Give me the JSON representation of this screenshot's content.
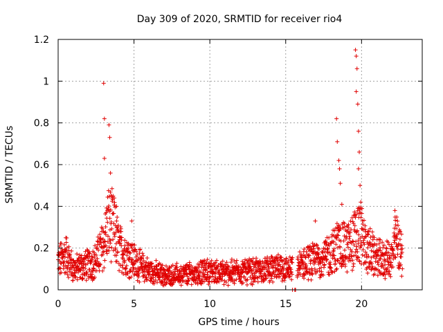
{
  "chart_data": {
    "type": "scatter",
    "title": "Day 309 of 2020, SRMTID for receiver rio4",
    "xlabel": "GPS time / hours",
    "ylabel": "SRMTID / TECUs",
    "xlim": [
      0,
      24
    ],
    "ylim": [
      0,
      1.2
    ],
    "xticks": [
      0,
      5,
      10,
      15,
      20
    ],
    "yticks": [
      0,
      0.2,
      0.4,
      0.6,
      0.8,
      1,
      1.2
    ],
    "xtick_labels": [
      "0",
      "5",
      "10",
      "15",
      "20"
    ],
    "ytick_labels": [
      "0",
      "0.2",
      "0.4",
      "0.6",
      "0.8",
      "1",
      "1.2"
    ],
    "grid": true,
    "marker": "plus",
    "color": "#e00000",
    "series": [
      {
        "name": "SRMTID rio4",
        "profile": [
          [
            0.0,
            0.13
          ],
          [
            0.5,
            0.17
          ],
          [
            1.0,
            0.1
          ],
          [
            1.5,
            0.11
          ],
          [
            2.0,
            0.12
          ],
          [
            2.5,
            0.14
          ],
          [
            3.0,
            0.22
          ],
          [
            3.3,
            0.32
          ],
          [
            3.6,
            0.3
          ],
          [
            4.0,
            0.2
          ],
          [
            4.5,
            0.17
          ],
          [
            5.0,
            0.14
          ],
          [
            5.5,
            0.11
          ],
          [
            6.0,
            0.09
          ],
          [
            7.0,
            0.07
          ],
          [
            8.0,
            0.07
          ],
          [
            9.0,
            0.08
          ],
          [
            10.0,
            0.09
          ],
          [
            11.0,
            0.08
          ],
          [
            12.0,
            0.09
          ],
          [
            13.0,
            0.09
          ],
          [
            14.0,
            0.1
          ],
          [
            15.0,
            0.1
          ],
          [
            15.4,
            0.09
          ],
          [
            16.0,
            0.12
          ],
          [
            17.0,
            0.14
          ],
          [
            18.0,
            0.17
          ],
          [
            18.5,
            0.22
          ],
          [
            19.0,
            0.2
          ],
          [
            19.5,
            0.24
          ],
          [
            19.9,
            0.27
          ],
          [
            20.3,
            0.2
          ],
          [
            21.0,
            0.15
          ],
          [
            21.5,
            0.14
          ],
          [
            22.0,
            0.15
          ],
          [
            22.3,
            0.25
          ],
          [
            22.7,
            0.15
          ]
        ],
        "peaks": [
          {
            "x": 3.0,
            "y": 0.99
          },
          {
            "x": 3.05,
            "y": 0.82
          },
          {
            "x": 3.05,
            "y": 0.63
          },
          {
            "x": 3.35,
            "y": 0.79
          },
          {
            "x": 3.4,
            "y": 0.73
          },
          {
            "x": 3.45,
            "y": 0.56
          },
          {
            "x": 3.5,
            "y": 0.45
          },
          {
            "x": 3.7,
            "y": 0.44
          },
          {
            "x": 3.85,
            "y": 0.4
          },
          {
            "x": 4.85,
            "y": 0.33
          },
          {
            "x": 16.95,
            "y": 0.33
          },
          {
            "x": 18.35,
            "y": 0.82
          },
          {
            "x": 18.4,
            "y": 0.71
          },
          {
            "x": 18.5,
            "y": 0.62
          },
          {
            "x": 18.55,
            "y": 0.58
          },
          {
            "x": 18.6,
            "y": 0.51
          },
          {
            "x": 18.7,
            "y": 0.41
          },
          {
            "x": 19.6,
            "y": 1.15
          },
          {
            "x": 19.65,
            "y": 1.12
          },
          {
            "x": 19.7,
            "y": 1.06
          },
          {
            "x": 19.65,
            "y": 0.95
          },
          {
            "x": 19.75,
            "y": 0.89
          },
          {
            "x": 19.8,
            "y": 0.76
          },
          {
            "x": 19.85,
            "y": 0.66
          },
          {
            "x": 19.8,
            "y": 0.58
          },
          {
            "x": 19.9,
            "y": 0.5
          },
          {
            "x": 19.95,
            "y": 0.42
          },
          {
            "x": 22.2,
            "y": 0.38
          }
        ],
        "sample_step_hours": 0.012
      }
    ]
  }
}
